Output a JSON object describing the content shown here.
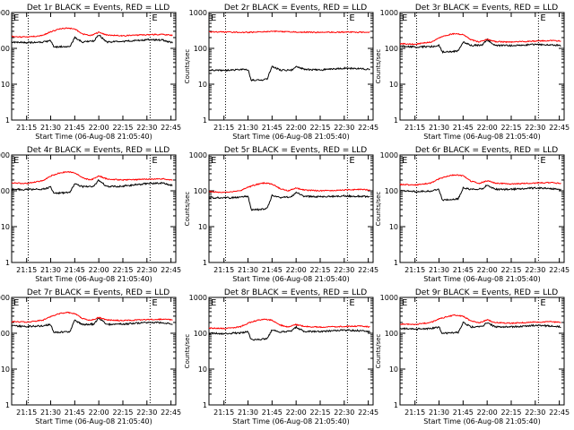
{
  "chart_data": {
    "type": "line",
    "layout": "3x3 grid of panels",
    "y_scale": "log",
    "ylim": [
      1,
      1000
    ],
    "y_ticks": [
      "1",
      "10",
      "100",
      "1000"
    ],
    "ylabel": "Counts/sec",
    "xlabel": "Start Time (06-Aug-08 21:05:40)",
    "x_ticks": [
      "21:15",
      "21:30",
      "21:45",
      "22:00",
      "22:15",
      "22:30",
      "22:45"
    ],
    "xlim": [
      "21:05:40",
      "22:48:00"
    ],
    "vertical_dotted_lines": [
      "21:16",
      "22:32"
    ],
    "markers": [
      {
        "text": "E",
        "time": "21:05:40"
      },
      {
        "text": "E",
        "time": "22:32"
      }
    ],
    "series_colors": {
      "events": "#000000",
      "lld": "#ff0000"
    },
    "panels": [
      {
        "title": "Det 1r BLACK = Events, RED = LLD",
        "series": [
          {
            "x": [
              "21:05:40",
              "21:15",
              "21:25",
              "21:30",
              "21:32",
              "21:38",
              "21:42",
              "21:45",
              "21:50",
              "21:57",
              "22:00",
              "22:05",
              "22:15",
              "22:30",
              "22:40",
              "22:46"
            ],
            "values": [
              150,
              145,
              148,
              165,
              110,
              112,
              108,
              200,
              150,
              160,
              240,
              150,
              155,
              175,
              170,
              145
            ]
          },
          {
            "x": [
              "21:05:40",
              "21:15",
              "21:25",
              "21:30",
              "21:35",
              "21:40",
              "21:45",
              "21:50",
              "21:55",
              "22:00",
              "22:05",
              "22:15",
              "22:30",
              "22:40",
              "22:46"
            ],
            "values": [
              215,
              205,
              230,
              290,
              345,
              370,
              350,
              250,
              230,
              280,
              235,
              225,
              240,
              245,
              230
            ]
          }
        ]
      },
      {
        "title": "Det 2r BLACK = Events, RED = LLD",
        "series": [
          {
            "x": [
              "21:05:40",
              "21:15",
              "21:25",
              "21:30",
              "21:32",
              "21:38",
              "21:42",
              "21:45",
              "21:50",
              "21:57",
              "22:00",
              "22:05",
              "22:15",
              "22:30",
              "22:40",
              "22:46"
            ],
            "values": [
              25,
              24,
              26,
              26,
              13,
              13,
              14,
              32,
              25,
              24,
              31,
              26,
              25,
              28,
              27,
              26
            ]
          },
          {
            "x": [
              "21:05:40",
              "21:15",
              "21:30",
              "21:45",
              "22:00",
              "22:15",
              "22:30",
              "22:46"
            ],
            "values": [
              290,
              285,
              280,
              300,
              285,
              280,
              285,
              280
            ]
          }
        ]
      },
      {
        "title": "Det 3r BLACK = Events, RED = LLD",
        "series": [
          {
            "x": [
              "21:05:40",
              "21:15",
              "21:25",
              "21:30",
              "21:32",
              "21:38",
              "21:42",
              "21:45",
              "21:50",
              "21:57",
              "22:00",
              "22:05",
              "22:15",
              "22:30",
              "22:40",
              "22:46"
            ],
            "values": [
              115,
              110,
              112,
              120,
              80,
              82,
              85,
              150,
              120,
              125,
              175,
              120,
              120,
              130,
              125,
              120
            ]
          },
          {
            "x": [
              "21:05:40",
              "21:15",
              "21:25",
              "21:30",
              "21:35",
              "21:40",
              "21:45",
              "21:50",
              "21:55",
              "22:00",
              "22:05",
              "22:15",
              "22:30",
              "22:40",
              "22:46"
            ],
            "values": [
              135,
              130,
              150,
              195,
              235,
              260,
              240,
              175,
              150,
              180,
              155,
              150,
              160,
              165,
              160
            ]
          }
        ]
      },
      {
        "title": "Det 4r BLACK = Events, RED = LLD",
        "series": [
          {
            "x": [
              "21:05:40",
              "21:15",
              "21:25",
              "21:30",
              "21:32",
              "21:38",
              "21:42",
              "21:45",
              "21:50",
              "21:57",
              "22:00",
              "22:05",
              "22:15",
              "22:30",
              "22:40",
              "22:46"
            ],
            "values": [
              110,
              108,
              112,
              125,
              85,
              88,
              90,
              160,
              130,
              135,
              200,
              130,
              135,
              160,
              165,
              140
            ]
          },
          {
            "x": [
              "21:05:40",
              "21:15",
              "21:25",
              "21:30",
              "21:35",
              "21:40",
              "21:45",
              "21:50",
              "21:55",
              "22:00",
              "22:05",
              "22:15",
              "22:30",
              "22:40",
              "22:46"
            ],
            "values": [
              165,
              160,
              190,
              260,
              310,
              340,
              320,
              230,
              200,
              260,
              215,
              200,
              210,
              215,
              200
            ]
          }
        ]
      },
      {
        "title": "Det 5r BLACK = Events, RED = LLD",
        "series": [
          {
            "x": [
              "21:05:40",
              "21:15",
              "21:25",
              "21:30",
              "21:32",
              "21:38",
              "21:42",
              "21:45",
              "21:50",
              "21:57",
              "22:00",
              "22:05",
              "22:15",
              "22:30",
              "22:40",
              "22:46"
            ],
            "values": [
              65,
              63,
              66,
              70,
              30,
              30,
              32,
              75,
              65,
              68,
              90,
              70,
              68,
              72,
              70,
              68
            ]
          },
          {
            "x": [
              "21:05:40",
              "21:15",
              "21:25",
              "21:30",
              "21:35",
              "21:40",
              "21:45",
              "21:50",
              "21:55",
              "22:00",
              "22:05",
              "22:15",
              "22:30",
              "22:40",
              "22:46"
            ],
            "values": [
              95,
              90,
              100,
              125,
              150,
              165,
              155,
              115,
              100,
              120,
              105,
              100,
              105,
              110,
              105
            ]
          }
        ]
      },
      {
        "title": "Det 6r BLACK = Events, RED = LLD",
        "series": [
          {
            "x": [
              "21:05:40",
              "21:15",
              "21:25",
              "21:30",
              "21:32",
              "21:38",
              "21:42",
              "21:45",
              "21:50",
              "21:57",
              "22:00",
              "22:05",
              "22:15",
              "22:30",
              "22:40",
              "22:46"
            ],
            "values": [
              100,
              95,
              98,
              110,
              55,
              58,
              60,
              120,
              110,
              115,
              145,
              110,
              110,
              120,
              115,
              110
            ]
          },
          {
            "x": [
              "21:05:40",
              "21:15",
              "21:25",
              "21:30",
              "21:35",
              "21:40",
              "21:45",
              "21:50",
              "21:55",
              "22:00",
              "22:05",
              "22:15",
              "22:30",
              "22:40",
              "22:46"
            ],
            "values": [
              150,
              145,
              165,
              215,
              255,
              280,
              260,
              185,
              160,
              190,
              165,
              155,
              165,
              170,
              160
            ]
          }
        ]
      },
      {
        "title": "Det 7r BLACK = Events, RED = LLD",
        "series": [
          {
            "x": [
              "21:05:40",
              "21:15",
              "21:25",
              "21:30",
              "21:32",
              "21:38",
              "21:42",
              "21:45",
              "21:50",
              "21:57",
              "22:00",
              "22:05",
              "22:15",
              "22:30",
              "22:40",
              "22:46"
            ],
            "values": [
              160,
              155,
              160,
              175,
              105,
              108,
              110,
              230,
              175,
              180,
              270,
              175,
              180,
              200,
              195,
              180
            ]
          },
          {
            "x": [
              "21:05:40",
              "21:15",
              "21:25",
              "21:30",
              "21:35",
              "21:40",
              "21:45",
              "21:50",
              "21:55",
              "22:00",
              "22:05",
              "22:15",
              "22:30",
              "22:40",
              "22:46"
            ],
            "values": [
              210,
              205,
              230,
              290,
              350,
              380,
              355,
              255,
              230,
              275,
              235,
              225,
              240,
              245,
              235
            ]
          }
        ]
      },
      {
        "title": "Det 8r BLACK = Events, RED = LLD",
        "series": [
          {
            "x": [
              "21:05:40",
              "21:15",
              "21:25",
              "21:30",
              "21:32",
              "21:38",
              "21:42",
              "21:45",
              "21:50",
              "21:57",
              "22:00",
              "22:05",
              "22:15",
              "22:30",
              "22:40",
              "22:46"
            ],
            "values": [
              100,
              98,
              102,
              110,
              65,
              68,
              70,
              125,
              110,
              115,
              150,
              112,
              112,
              122,
              118,
              110
            ]
          },
          {
            "x": [
              "21:05:40",
              "21:15",
              "21:25",
              "21:30",
              "21:35",
              "21:40",
              "21:45",
              "21:50",
              "21:55",
              "22:00",
              "22:05",
              "22:15",
              "22:30",
              "22:40",
              "22:46"
            ],
            "values": [
              140,
              135,
              150,
              190,
              225,
              245,
              230,
              170,
              150,
              175,
              155,
              148,
              155,
              160,
              150
            ]
          }
        ]
      },
      {
        "title": "Det 9r BLACK = Events, RED = LLD",
        "series": [
          {
            "x": [
              "21:05:40",
              "21:15",
              "21:25",
              "21:30",
              "21:32",
              "21:38",
              "21:42",
              "21:45",
              "21:50",
              "21:57",
              "22:00",
              "22:05",
              "22:15",
              "22:30",
              "22:40",
              "22:46"
            ],
            "values": [
              135,
              130,
              135,
              150,
              100,
              102,
              105,
              200,
              150,
              155,
              200,
              150,
              150,
              165,
              160,
              150
            ]
          },
          {
            "x": [
              "21:05:40",
              "21:15",
              "21:25",
              "21:30",
              "21:35",
              "21:40",
              "21:45",
              "21:50",
              "21:55",
              "22:00",
              "22:05",
              "22:15",
              "22:30",
              "22:40",
              "22:46"
            ],
            "values": [
              180,
              175,
              200,
              250,
              290,
              320,
              300,
              220,
              195,
              235,
              200,
              190,
              205,
              210,
              200
            ]
          }
        ]
      }
    ]
  }
}
